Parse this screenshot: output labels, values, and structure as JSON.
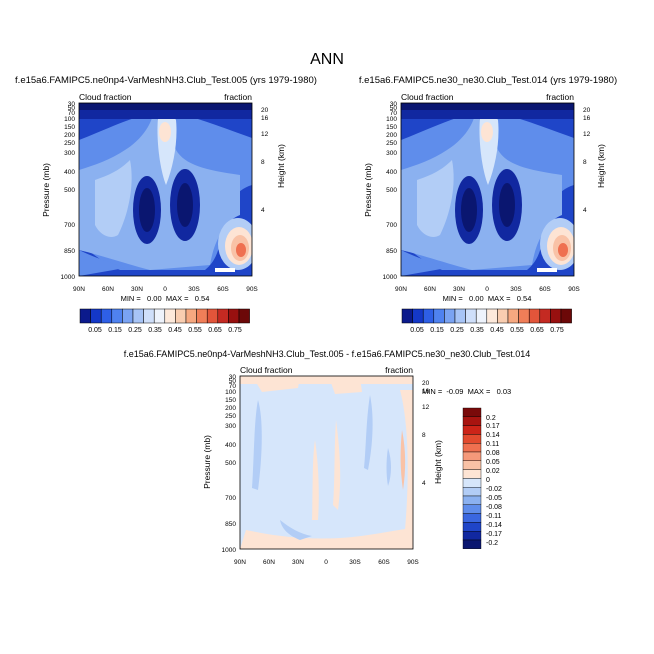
{
  "chart_data": {
    "type": "heatmap",
    "title": "ANN",
    "panels": [
      {
        "id": "top-left",
        "title": "f.e15a6.FAMIPC5.ne0np4-VarMeshNH3.Club_Test.005 (yrs 1979-1980)",
        "left_label": "Cloud fraction",
        "right_label": "fraction",
        "ylabel": "Pressure (mb)",
        "ylabel_right": "Height (km)",
        "x_ticks": [
          "90N",
          "60N",
          "30N",
          "0",
          "30S",
          "60S",
          "90S"
        ],
        "y_ticks": [
          "30",
          "50",
          "70",
          "100",
          "150",
          "200",
          "250",
          "300",
          "400",
          "500",
          "700",
          "850",
          "1000"
        ],
        "y_ticks_right": [
          "20",
          "16",
          "12",
          "8",
          "4"
        ],
        "min_max": "MIN =   0.00  MAX =   0.54"
      },
      {
        "id": "top-right",
        "title": "f.e15a6.FAMIPC5.ne30_ne30.Club_Test.014 (yrs 1979-1980)",
        "left_label": "Cloud fraction",
        "right_label": "fraction",
        "ylabel": "Pressure (mb)",
        "ylabel_right": "Height (km)",
        "x_ticks": [
          "90N",
          "60N",
          "30N",
          "0",
          "30S",
          "60S",
          "90S"
        ],
        "y_ticks": [
          "30",
          "50",
          "70",
          "100",
          "150",
          "200",
          "250",
          "300",
          "400",
          "500",
          "700",
          "850",
          "1000"
        ],
        "y_ticks_right": [
          "20",
          "16",
          "12",
          "8",
          "4"
        ],
        "min_max": "MIN =   0.00  MAX =   0.54"
      },
      {
        "id": "bottom-diff",
        "title": "f.e15a6.FAMIPC5.ne0np4-VarMeshNH3.Club_Test.005 - f.e15a6.FAMIPC5.ne30_ne30.Club_Test.014",
        "left_label": "Cloud fraction",
        "right_label": "fraction",
        "ylabel": "Pressure (mb)",
        "ylabel_right": "Height (km)",
        "x_ticks": [
          "90N",
          "60N",
          "30N",
          "0",
          "30S",
          "60S",
          "90S"
        ],
        "y_ticks": [
          "30",
          "50",
          "70",
          "100",
          "150",
          "200",
          "250",
          "300",
          "400",
          "500",
          "700",
          "850",
          "1000"
        ],
        "y_ticks_right": [
          "20",
          "16",
          "12",
          "8",
          "4"
        ],
        "min_max": "MIN =  -0.09  MAX =   0.03"
      }
    ],
    "colorbar_top": {
      "labels": [
        "0.05",
        "0.15",
        "0.25",
        "0.35",
        "0.45",
        "0.55",
        "0.65",
        "0.75"
      ],
      "colors": [
        "#0b1a8c",
        "#1438c8",
        "#2e5fe6",
        "#4f82f0",
        "#7aa3f2",
        "#a7c4f6",
        "#cfdffa",
        "#eef3fc",
        "#fde9db",
        "#f9cdb0",
        "#f6a880",
        "#f07e58",
        "#e2553a",
        "#c42a22",
        "#98100f",
        "#6c0808"
      ]
    },
    "colorbar_diff": {
      "labels": [
        "0.2",
        "0.17",
        "0.14",
        "0.11",
        "0.08",
        "0.05",
        "0.02",
        "0",
        "-0.02",
        "-0.05",
        "-0.08",
        "-0.11",
        "-0.14",
        "-0.17",
        "-0.2"
      ],
      "colors": [
        "#7a0a0a",
        "#a81410",
        "#cc2418",
        "#e24a2e",
        "#ef7050",
        "#f5997a",
        "#f9c2a6",
        "#fde4d4",
        "#d6e6fb",
        "#b2cdf6",
        "#8bb1f0",
        "#5f8deb",
        "#3a67e0",
        "#1f45c8",
        "#1128a0",
        "#0a1670"
      ]
    }
  }
}
